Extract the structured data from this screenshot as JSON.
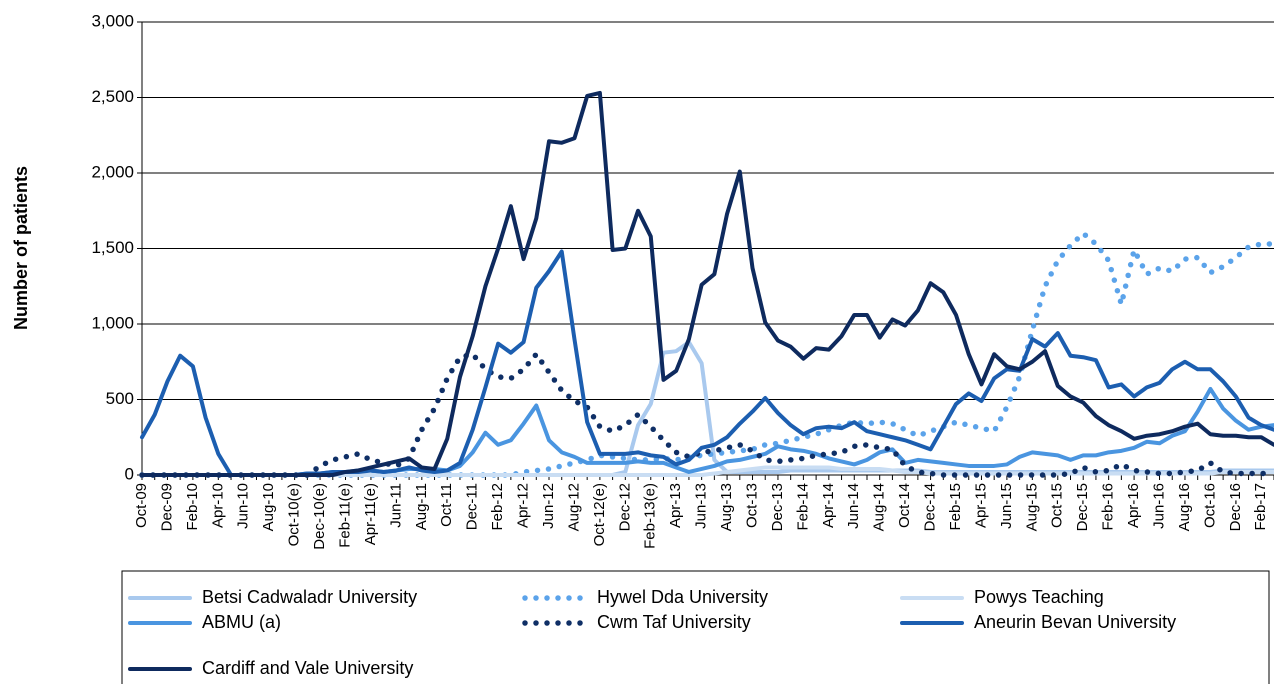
{
  "chart_data": {
    "type": "line",
    "y_label": "Number of patients",
    "categories": [
      "Oct-09",
      null,
      "Dec-09",
      null,
      "Feb-10",
      null,
      "Apr-10",
      null,
      "Jun-10",
      null,
      "Aug-10",
      null,
      "Oct-10(e)",
      null,
      "Dec-10(e)",
      null,
      "Feb-11(e)",
      null,
      "Apr-11(e)",
      null,
      "Jun-11",
      null,
      "Aug-11",
      null,
      "Oct-11",
      null,
      "Dec-11",
      null,
      "Feb-12",
      null,
      "Apr-12",
      null,
      "Jun-12",
      null,
      "Aug-12",
      null,
      "Oct-12(e)",
      null,
      "Dec-12",
      null,
      "Feb-13(e)",
      null,
      "Apr-13",
      null,
      "Jun-13",
      null,
      "Aug-13",
      null,
      "Oct-13",
      null,
      "Dec-13",
      null,
      "Feb-14",
      null,
      "Apr-14",
      null,
      "Jun-14",
      null,
      "Aug-14",
      null,
      "Oct-14",
      null,
      "Dec-14",
      null,
      "Feb-15",
      null,
      "Apr-15",
      null,
      "Jun-15",
      null,
      "Aug-15",
      null,
      "Oct-15",
      null,
      "Dec-15",
      null,
      "Feb-16",
      null,
      "Apr-16",
      null,
      "Jun-16",
      null,
      "Aug-16",
      null,
      "Oct-16",
      null,
      "Dec-16",
      null,
      "Feb-17",
      null
    ],
    "ylim": [
      0,
      3000
    ],
    "yticks": [
      0,
      {
        "value": 500,
        "label": "500"
      },
      {
        "value": 1000,
        "label": "1,000"
      },
      {
        "value": 1500,
        "label": "1,500"
      },
      {
        "value": 2000,
        "label": "2,000"
      },
      {
        "value": 2500,
        "label": "2,500"
      },
      {
        "value": 3000,
        "label": "3,000"
      }
    ],
    "grid": true,
    "legend": "bottom",
    "series": [
      {
        "name": "Betsi Cadwaladr University",
        "color": "#a9c9ee",
        "line_style": "solid",
        "values": [
          0,
          0,
          0,
          0,
          0,
          0,
          0,
          0,
          0,
          0,
          0,
          0,
          0,
          0,
          0,
          0,
          0,
          0,
          0,
          0,
          0,
          0,
          0,
          0,
          0,
          0,
          0,
          0,
          0,
          0,
          0,
          0,
          0,
          0,
          0,
          0,
          0,
          0,
          20,
          330,
          470,
          810,
          820,
          880,
          740,
          100,
          20,
          20,
          20,
          20,
          20,
          30,
          30,
          30,
          30,
          30,
          30,
          30,
          30,
          30,
          30,
          30,
          20,
          20,
          20,
          20,
          20,
          20,
          20,
          20,
          20,
          20,
          20,
          20,
          20,
          20,
          20,
          20,
          20,
          20,
          20,
          20,
          20,
          20,
          20,
          30,
          30,
          30,
          30,
          30
        ]
      },
      {
        "name": "Hywel Dda University",
        "color": "#5ba3ea",
        "line_style": "dotted",
        "values": [
          0,
          0,
          0,
          0,
          0,
          0,
          0,
          0,
          0,
          0,
          0,
          0,
          0,
          0,
          0,
          0,
          0,
          0,
          0,
          0,
          0,
          0,
          0,
          0,
          0,
          0,
          0,
          0,
          0,
          0,
          20,
          30,
          40,
          60,
          80,
          100,
          130,
          120,
          110,
          100,
          100,
          110,
          100,
          120,
          130,
          140,
          150,
          160,
          170,
          200,
          210,
          230,
          250,
          270,
          300,
          330,
          350,
          340,
          350,
          340,
          300,
          260,
          290,
          320,
          350,
          330,
          310,
          290,
          450,
          650,
          960,
          1250,
          1420,
          1520,
          1600,
          1530,
          1420,
          1130,
          1490,
          1330,
          1370,
          1350,
          1430,
          1440,
          1340,
          1380,
          1440,
          1510,
          1530,
          1530
        ]
      },
      {
        "name": "Powys Teaching",
        "color": "#c9ddf3",
        "line_style": "solid",
        "values": [
          0,
          0,
          0,
          0,
          0,
          0,
          0,
          0,
          0,
          0,
          0,
          0,
          0,
          0,
          0,
          0,
          0,
          0,
          0,
          0,
          0,
          0,
          0,
          0,
          0,
          0,
          0,
          0,
          0,
          0,
          0,
          0,
          0,
          0,
          0,
          0,
          0,
          0,
          0,
          0,
          0,
          0,
          0,
          0,
          0,
          10,
          20,
          30,
          40,
          50,
          50,
          50,
          50,
          50,
          50,
          40,
          40,
          40,
          40,
          30,
          20,
          20,
          10,
          10,
          10,
          10,
          10,
          10,
          10,
          10,
          10,
          10,
          10,
          10,
          10,
          10,
          10,
          10,
          10,
          10,
          10,
          10,
          10,
          10,
          10,
          20,
          20,
          20,
          20,
          20
        ]
      },
      {
        "name": "ABMU (a)",
        "color": "#4a95e0",
        "line_style": "solid",
        "values": [
          0,
          0,
          0,
          0,
          0,
          0,
          0,
          0,
          0,
          0,
          0,
          0,
          0,
          10,
          10,
          20,
          20,
          30,
          30,
          20,
          30,
          40,
          40,
          40,
          30,
          60,
          150,
          280,
          200,
          230,
          340,
          460,
          230,
          150,
          120,
          80,
          80,
          80,
          80,
          90,
          80,
          80,
          50,
          20,
          40,
          60,
          90,
          100,
          120,
          140,
          190,
          170,
          160,
          140,
          110,
          90,
          70,
          100,
          150,
          170,
          80,
          100,
          90,
          80,
          70,
          60,
          60,
          60,
          70,
          120,
          150,
          140,
          130,
          100,
          130,
          130,
          150,
          160,
          180,
          220,
          210,
          260,
          290,
          420,
          570,
          440,
          360,
          300,
          320,
          330
        ]
      },
      {
        "name": "Cwm Taf University",
        "color": "#0f2f66",
        "line_style": "dotted",
        "values": [
          0,
          0,
          0,
          0,
          0,
          0,
          0,
          0,
          0,
          0,
          0,
          0,
          0,
          0,
          60,
          100,
          120,
          140,
          100,
          80,
          60,
          110,
          300,
          440,
          640,
          780,
          800,
          700,
          650,
          640,
          700,
          800,
          680,
          560,
          490,
          450,
          320,
          290,
          330,
          400,
          320,
          230,
          150,
          120,
          150,
          160,
          180,
          200,
          160,
          100,
          90,
          100,
          110,
          130,
          140,
          150,
          190,
          200,
          180,
          170,
          60,
          20,
          10,
          0,
          0,
          0,
          0,
          0,
          0,
          0,
          0,
          0,
          0,
          10,
          50,
          20,
          30,
          70,
          30,
          20,
          10,
          10,
          20,
          30,
          80,
          20,
          10,
          10,
          10,
          10
        ]
      },
      {
        "name": "Aneurin Bevan University",
        "color": "#1c5eb0",
        "line_style": "solid",
        "values": [
          250,
          400,
          620,
          790,
          720,
          380,
          140,
          0,
          0,
          0,
          0,
          0,
          0,
          10,
          10,
          20,
          20,
          20,
          30,
          20,
          30,
          50,
          30,
          20,
          30,
          80,
          300,
          580,
          870,
          810,
          880,
          1240,
          1350,
          1480,
          900,
          350,
          140,
          140,
          140,
          150,
          130,
          120,
          70,
          100,
          180,
          200,
          250,
          340,
          420,
          510,
          410,
          330,
          270,
          310,
          320,
          310,
          350,
          290,
          270,
          250,
          230,
          200,
          170,
          320,
          470,
          540,
          490,
          640,
          700,
          690,
          900,
          850,
          940,
          790,
          780,
          760,
          580,
          600,
          520,
          580,
          610,
          700,
          750,
          700,
          700,
          620,
          520,
          380,
          330,
          300
        ]
      },
      {
        "name": "Cardiff and Vale University",
        "color": "#0e2a5e",
        "line_style": "solid",
        "values": [
          0,
          0,
          0,
          0,
          0,
          0,
          0,
          0,
          0,
          0,
          0,
          0,
          0,
          0,
          0,
          0,
          20,
          30,
          50,
          70,
          90,
          110,
          50,
          40,
          240,
          650,
          920,
          1250,
          1500,
          1780,
          1430,
          1700,
          2210,
          2200,
          2230,
          2510,
          2530,
          1490,
          1500,
          1750,
          1580,
          630,
          690,
          900,
          1260,
          1330,
          1730,
          2010,
          1370,
          1010,
          890,
          850,
          770,
          840,
          830,
          920,
          1060,
          1060,
          910,
          1030,
          990,
          1090,
          1270,
          1210,
          1060,
          800,
          600,
          800,
          720,
          700,
          750,
          820,
          590,
          520,
          480,
          390,
          330,
          290,
          240,
          260,
          270,
          290,
          320,
          340,
          270,
          260,
          260,
          250,
          250,
          200
        ]
      }
    ]
  }
}
